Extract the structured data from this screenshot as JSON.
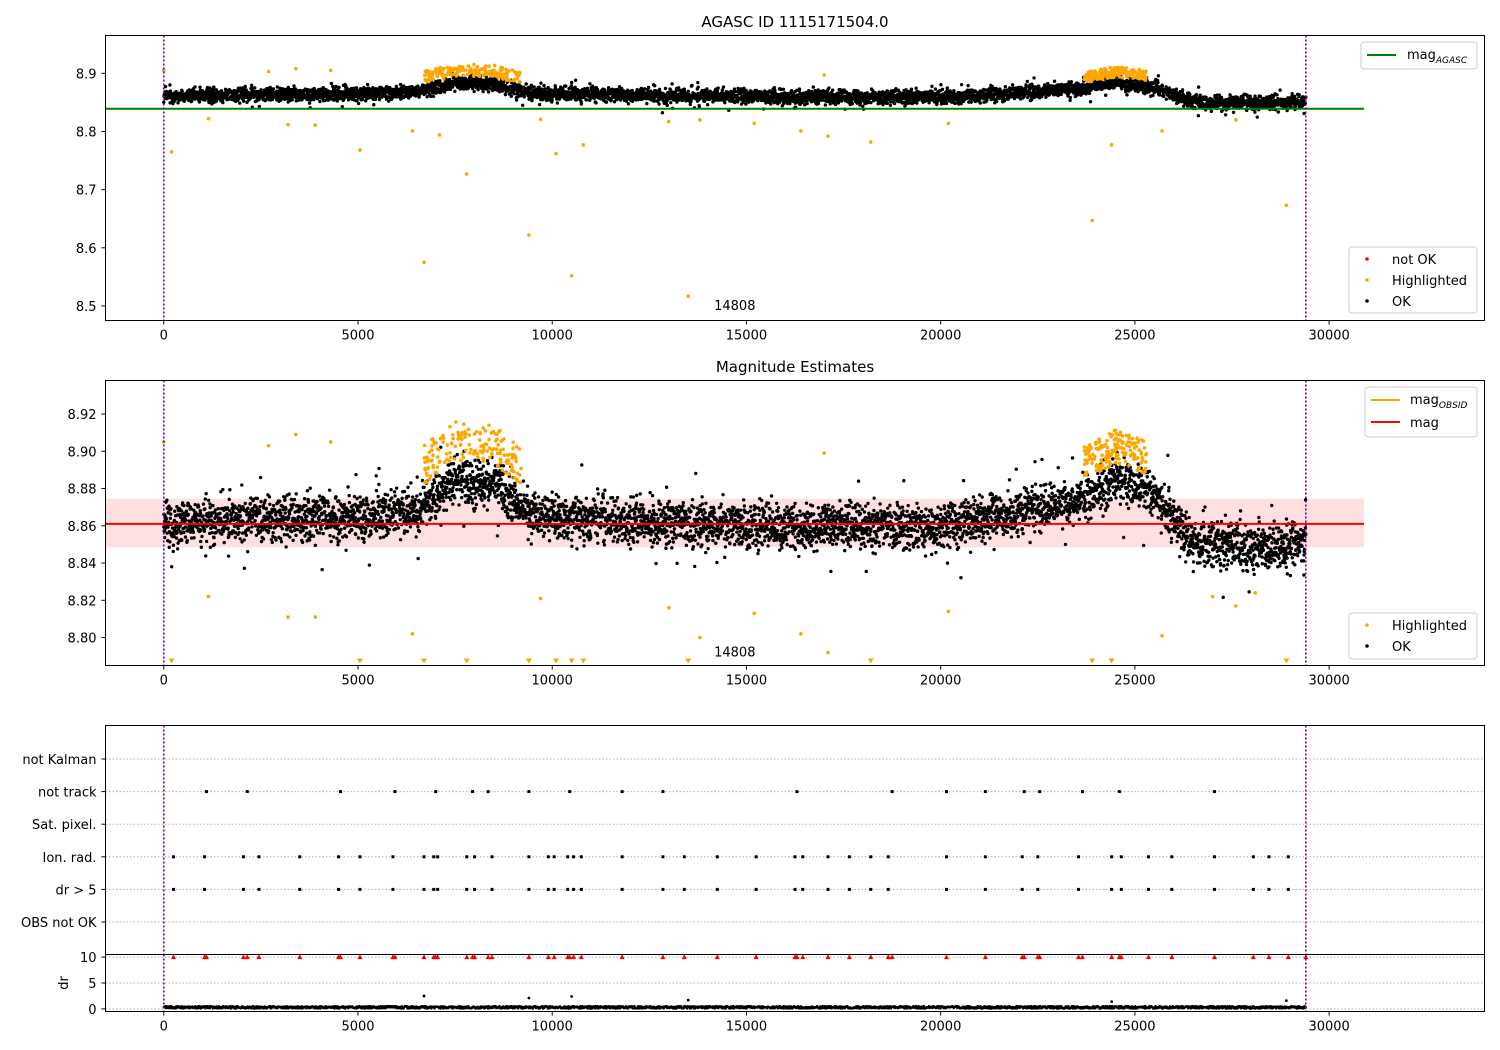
{
  "figure": {
    "title": "AGASC ID 1115171504.0"
  },
  "colors": {
    "ok": "#000000",
    "highlighted": "#ffa500",
    "not_ok": "#ff0000",
    "agasc_line": "#008000",
    "mag_line": "#ff0000",
    "obsid_line": "#ffa500",
    "band_fill": "#ffe0e0",
    "obs_boundary": "#800080"
  },
  "chart_data": [
    {
      "id": "panel1",
      "type": "scatter",
      "title": "AGASC ID 1115171504.0",
      "xlim": [
        -1500,
        34000
      ],
      "ylim": [
        8.475,
        8.965
      ],
      "xticks": [
        0,
        5000,
        10000,
        15000,
        20000,
        25000,
        30000
      ],
      "yticks": [
        8.5,
        8.6,
        8.7,
        8.8,
        8.9
      ],
      "ytick_labels": [
        "8.5",
        "8.6",
        "8.7",
        "8.8",
        "8.9"
      ],
      "obsid_boundaries": [
        0,
        29400
      ],
      "obsid_label": {
        "text": "14808",
        "x": 14700,
        "y": 8.5
      },
      "hlines": [
        {
          "name": "mag_AGASC",
          "y": 8.839,
          "x_range": [
            -1500,
            30900
          ],
          "color": "#008000"
        }
      ],
      "ok_trend": {
        "x": [
          0,
          2500,
          5000,
          6500,
          7500,
          8500,
          9500,
          12000,
          15000,
          20000,
          23500,
          24500,
          25500,
          26500,
          28000,
          29400
        ],
        "y": [
          8.861,
          8.864,
          8.864,
          8.868,
          8.884,
          8.882,
          8.866,
          8.862,
          8.86,
          8.859,
          8.873,
          8.884,
          8.876,
          8.851,
          8.848,
          8.851
        ]
      },
      "ok_spread": 0.011,
      "highlight_bands": [
        [
          6700,
          9200,
          0.014
        ],
        [
          23700,
          25300,
          0.012
        ]
      ],
      "highlighted_outliers": [
        {
          "x": 0,
          "y": 8.905
        },
        {
          "x": 200,
          "y": 8.765
        },
        {
          "x": 1150,
          "y": 8.822
        },
        {
          "x": 3200,
          "y": 8.812
        },
        {
          "x": 3900,
          "y": 8.811
        },
        {
          "x": 5050,
          "y": 8.768
        },
        {
          "x": 6400,
          "y": 8.801
        },
        {
          "x": 6700,
          "y": 8.575
        },
        {
          "x": 7100,
          "y": 8.794
        },
        {
          "x": 7800,
          "y": 8.727
        },
        {
          "x": 9400,
          "y": 8.622
        },
        {
          "x": 9700,
          "y": 8.821
        },
        {
          "x": 10100,
          "y": 8.762
        },
        {
          "x": 10500,
          "y": 8.552
        },
        {
          "x": 10800,
          "y": 8.777
        },
        {
          "x": 13000,
          "y": 8.817
        },
        {
          "x": 13500,
          "y": 8.517
        },
        {
          "x": 13800,
          "y": 8.82
        },
        {
          "x": 15200,
          "y": 8.814
        },
        {
          "x": 16400,
          "y": 8.801
        },
        {
          "x": 17100,
          "y": 8.792
        },
        {
          "x": 18200,
          "y": 8.782
        },
        {
          "x": 20200,
          "y": 8.814
        },
        {
          "x": 23900,
          "y": 8.647
        },
        {
          "x": 24400,
          "y": 8.777
        },
        {
          "x": 25700,
          "y": 8.801
        },
        {
          "x": 27600,
          "y": 8.82
        },
        {
          "x": 28900,
          "y": 8.673
        },
        {
          "x": 3400,
          "y": 8.908
        },
        {
          "x": 4300,
          "y": 8.905
        },
        {
          "x": 2700,
          "y": 8.903
        },
        {
          "x": 17000,
          "y": 8.897
        }
      ],
      "legend": [
        {
          "label": "mag",
          "sub": "AGASC",
          "kind": "line",
          "color": "#008000",
          "placement": "upper right"
        },
        {
          "label": "not OK",
          "kind": "point",
          "color": "#ff0000",
          "placement": "lower right"
        },
        {
          "label": "Highlighted",
          "kind": "point",
          "color": "#ffa500",
          "placement": "lower right"
        },
        {
          "label": "OK",
          "kind": "point",
          "color": "#000000",
          "placement": "lower right"
        }
      ]
    },
    {
      "id": "panel2",
      "type": "scatter",
      "title": "Magnitude Estimates",
      "xlim": [
        -1500,
        34000
      ],
      "ylim": [
        8.785,
        8.938
      ],
      "xticks": [
        0,
        5000,
        10000,
        15000,
        20000,
        25000,
        30000
      ],
      "yticks": [
        8.8,
        8.82,
        8.84,
        8.86,
        8.88,
        8.9,
        8.92
      ],
      "ytick_labels": [
        "8.80",
        "8.82",
        "8.84",
        "8.86",
        "8.88",
        "8.90",
        "8.92"
      ],
      "obsid_boundaries": [
        0,
        29400
      ],
      "obsid_label": {
        "text": "14808",
        "x": 14700,
        "y": 8.792
      },
      "hlines": [
        {
          "name": "mag",
          "y": 8.861,
          "x_range": [
            -1500,
            30900
          ],
          "color": "#ff0000"
        }
      ],
      "band": {
        "y_low": 8.8485,
        "y_high": 8.8745,
        "x_range": [
          -1500,
          30900
        ]
      },
      "ok_trend": {
        "x": [
          0,
          2500,
          5000,
          6500,
          7500,
          8500,
          9500,
          12000,
          15000,
          20000,
          23500,
          24500,
          25500,
          26500,
          28000,
          29400
        ],
        "y": [
          8.861,
          8.864,
          8.864,
          8.868,
          8.884,
          8.882,
          8.866,
          8.862,
          8.86,
          8.859,
          8.873,
          8.884,
          8.876,
          8.851,
          8.848,
          8.851
        ]
      },
      "ok_spread": 0.011,
      "highlight_bands": [
        [
          6700,
          9200,
          0.014
        ],
        [
          23700,
          25300,
          0.012
        ]
      ],
      "highlighted_outliers": [
        {
          "x": 0,
          "y": 8.905
        },
        {
          "x": 1150,
          "y": 8.822
        },
        {
          "x": 3200,
          "y": 8.811
        },
        {
          "x": 3400,
          "y": 8.909
        },
        {
          "x": 3900,
          "y": 8.811
        },
        {
          "x": 4300,
          "y": 8.905
        },
        {
          "x": 6400,
          "y": 8.802
        },
        {
          "x": 9700,
          "y": 8.821
        },
        {
          "x": 13000,
          "y": 8.816
        },
        {
          "x": 13800,
          "y": 8.8
        },
        {
          "x": 15200,
          "y": 8.813
        },
        {
          "x": 16400,
          "y": 8.802
        },
        {
          "x": 17100,
          "y": 8.792
        },
        {
          "x": 17000,
          "y": 8.899
        },
        {
          "x": 20200,
          "y": 8.814
        },
        {
          "x": 25700,
          "y": 8.801
        },
        {
          "x": 27000,
          "y": 8.822
        },
        {
          "x": 27600,
          "y": 8.817
        },
        {
          "x": 28100,
          "y": 8.824
        },
        {
          "x": 2700,
          "y": 8.903
        }
      ],
      "offscale_markers_x": [
        200,
        5050,
        6700,
        7800,
        9400,
        10100,
        10500,
        10800,
        13500,
        18200,
        23900,
        24400,
        28900
      ],
      "legend": [
        {
          "label": "mag",
          "sub": "OBSID",
          "kind": "line",
          "color": "#ffa500",
          "placement": "upper right"
        },
        {
          "label": "mag",
          "kind": "line",
          "color": "#ff0000",
          "placement": "upper right"
        },
        {
          "label": "Highlighted",
          "kind": "point",
          "color": "#ffa500",
          "placement": "lower right"
        },
        {
          "label": "OK",
          "kind": "point",
          "color": "#000000",
          "placement": "lower right"
        }
      ]
    },
    {
      "id": "panel3",
      "type": "scatter",
      "xlim": [
        -1500,
        34000
      ],
      "flag_rows": [
        "not Kalman",
        "not track",
        "Sat. pixel.",
        "Ion. rad.",
        "dr > 5",
        "OBS not OK"
      ],
      "flag_events": {
        "not track": [
          1100,
          2150,
          4550,
          5950,
          7000,
          7950,
          8350,
          9400,
          10450,
          11800,
          12850,
          16300,
          18750,
          20150,
          21150,
          22150,
          22550,
          23650,
          24600,
          27050
        ],
        "Ion. rad.": [
          250,
          1050,
          2050,
          2450,
          3500,
          4500,
          5050,
          5900,
          6700,
          6950,
          7050,
          7800,
          8000,
          8450,
          9400,
          9900,
          10050,
          10400,
          10550,
          10750,
          11800,
          12850,
          13400,
          14250,
          15250,
          16250,
          16450,
          17100,
          17650,
          18200,
          18650,
          20150,
          21150,
          22100,
          22500,
          23550,
          24400,
          24650,
          25350,
          25950,
          27050,
          28050,
          28450,
          28950
        ],
        "dr > 5": [
          250,
          1050,
          2050,
          2450,
          3500,
          4500,
          5050,
          5900,
          6700,
          6950,
          7050,
          7800,
          8000,
          8450,
          9400,
          9900,
          10050,
          10400,
          10550,
          10750,
          11800,
          12850,
          13400,
          14250,
          15250,
          16250,
          16450,
          17100,
          17650,
          18200,
          18650,
          20150,
          21150,
          22100,
          22500,
          23550,
          24400,
          24650,
          25350,
          25950,
          27050,
          28050,
          28450,
          28950
        ]
      }
    },
    {
      "id": "panel4",
      "type": "scatter",
      "ylabel": "dr",
      "xlim": [
        -1500,
        34000
      ],
      "ylim": [
        -0.5,
        10.5
      ],
      "xticks": [
        0,
        5000,
        10000,
        15000,
        20000,
        25000,
        30000
      ],
      "yticks": [
        0,
        5,
        10
      ],
      "ytick_labels": [
        "0",
        "5",
        "10"
      ],
      "dr_level": 0.3,
      "dr_outliers": [
        {
          "x": 6700,
          "y": 2.5
        },
        {
          "x": 9400,
          "y": 2.1
        },
        {
          "x": 10500,
          "y": 2.4
        },
        {
          "x": 13500,
          "y": 1.7
        },
        {
          "x": 24400,
          "y": 1.4
        },
        {
          "x": 28900,
          "y": 1.6
        }
      ],
      "clipped_at": 10,
      "clipped_x": [
        250,
        1050,
        1100,
        2050,
        2150,
        2450,
        3500,
        4500,
        4550,
        5050,
        5900,
        5950,
        6700,
        6950,
        7000,
        7050,
        7800,
        7950,
        8000,
        8350,
        8450,
        9400,
        9900,
        10050,
        10400,
        10450,
        10550,
        10750,
        11800,
        12850,
        13400,
        14250,
        15250,
        16250,
        16300,
        16450,
        17100,
        17650,
        18200,
        18650,
        18750,
        20150,
        21150,
        22100,
        22150,
        22500,
        22550,
        23550,
        23650,
        24400,
        24600,
        24650,
        25350,
        25950,
        27050,
        28050,
        28450,
        28950,
        29400
      ]
    }
  ]
}
